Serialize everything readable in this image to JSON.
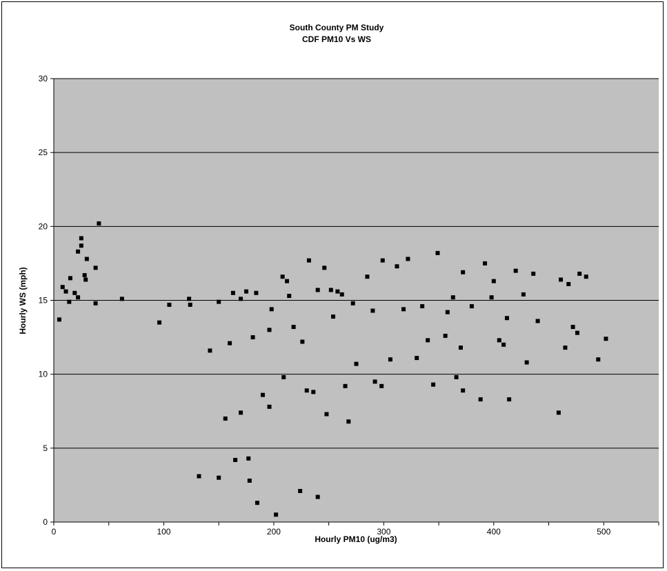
{
  "chart_data": {
    "type": "scatter",
    "title": "South County PM Study",
    "subtitle": "CDF PM10 Vs WS",
    "xlabel": "Hourly PM10 (ug/m3)",
    "ylabel": "Hourly WS (mph)",
    "xlim": [
      0,
      550
    ],
    "ylim": [
      0,
      30
    ],
    "xticks": [
      0,
      100,
      200,
      300,
      400,
      500
    ],
    "yticks": [
      0,
      5,
      10,
      15,
      20,
      25,
      30
    ],
    "grid": "horizontal",
    "legend": "none",
    "plot_background": "#C0C0C0",
    "marker_color": "#000000",
    "marker": "square",
    "series": [
      {
        "points": [
          [
            41,
            20.2
          ],
          [
            25,
            19.2
          ],
          [
            25,
            18.7
          ],
          [
            22,
            18.3
          ],
          [
            30,
            17.8
          ],
          [
            38,
            17.2
          ],
          [
            28,
            16.7
          ],
          [
            29,
            16.4
          ],
          [
            15,
            16.5
          ],
          [
            8,
            15.9
          ],
          [
            11,
            15.6
          ],
          [
            19,
            15.5
          ],
          [
            14,
            14.9
          ],
          [
            38,
            14.8
          ],
          [
            62,
            15.1
          ],
          [
            5,
            13.7
          ],
          [
            22,
            15.2
          ],
          [
            96,
            13.5
          ],
          [
            105,
            14.7
          ],
          [
            123,
            15.1
          ],
          [
            124,
            14.7
          ],
          [
            150,
            14.9
          ],
          [
            163,
            15.5
          ],
          [
            170,
            15.1
          ],
          [
            175,
            15.6
          ],
          [
            184,
            15.5
          ],
          [
            198,
            14.4
          ],
          [
            208,
            16.6
          ],
          [
            212,
            16.3
          ],
          [
            214,
            15.3
          ],
          [
            232,
            17.7
          ],
          [
            246,
            17.2
          ],
          [
            240,
            15.7
          ],
          [
            252,
            15.7
          ],
          [
            258,
            15.6
          ],
          [
            262,
            15.4
          ],
          [
            285,
            16.6
          ],
          [
            299,
            17.7
          ],
          [
            312,
            17.3
          ],
          [
            322,
            17.8
          ],
          [
            349,
            18.2
          ],
          [
            372,
            16.9
          ],
          [
            363,
            15.2
          ],
          [
            392,
            17.5
          ],
          [
            420,
            17.0
          ],
          [
            436,
            16.8
          ],
          [
            478,
            16.8
          ],
          [
            484,
            16.6
          ],
          [
            461,
            16.4
          ],
          [
            468,
            16.1
          ],
          [
            400,
            16.3
          ],
          [
            226,
            12.2
          ],
          [
            230,
            8.9
          ],
          [
            236,
            8.8
          ],
          [
            248,
            7.3
          ],
          [
            265,
            9.2
          ],
          [
            268,
            6.8
          ],
          [
            275,
            10.7
          ],
          [
            292,
            9.5
          ],
          [
            298,
            9.2
          ],
          [
            306,
            11.0
          ],
          [
            330,
            11.1
          ],
          [
            345,
            9.3
          ],
          [
            366,
            9.8
          ],
          [
            372,
            8.9
          ],
          [
            388,
            8.3
          ],
          [
            414,
            8.3
          ],
          [
            430,
            10.8
          ],
          [
            459,
            7.4
          ],
          [
            495,
            11.0
          ],
          [
            502,
            12.4
          ],
          [
            472,
            13.2
          ],
          [
            476,
            12.8
          ],
          [
            465,
            11.8
          ],
          [
            440,
            13.6
          ],
          [
            409,
            12.0
          ],
          [
            405,
            12.3
          ],
          [
            370,
            11.8
          ],
          [
            356,
            12.6
          ],
          [
            340,
            12.3
          ],
          [
            165,
            4.2
          ],
          [
            177,
            4.3
          ],
          [
            178,
            2.8
          ],
          [
            185,
            1.3
          ],
          [
            202,
            0.5
          ],
          [
            224,
            2.1
          ],
          [
            240,
            1.7
          ],
          [
            150,
            3.0
          ],
          [
            132,
            3.1
          ],
          [
            156,
            7.0
          ],
          [
            170,
            7.4
          ],
          [
            196,
            7.8
          ],
          [
            190,
            8.6
          ],
          [
            209,
            9.8
          ],
          [
            142,
            11.6
          ],
          [
            160,
            12.1
          ],
          [
            181,
            12.5
          ],
          [
            196,
            13.0
          ],
          [
            218,
            13.2
          ],
          [
            254,
            13.9
          ],
          [
            272,
            14.8
          ],
          [
            290,
            14.3
          ],
          [
            318,
            14.4
          ],
          [
            335,
            14.6
          ],
          [
            358,
            14.2
          ],
          [
            380,
            14.6
          ],
          [
            398,
            15.2
          ],
          [
            412,
            13.8
          ],
          [
            427,
            15.4
          ]
        ]
      }
    ]
  }
}
